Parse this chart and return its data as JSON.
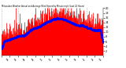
{
  "title": "Milwaukee Weather Actual and Average Wind Speed by Minute mph (Last 24 Hours)",
  "n_points": 1440,
  "ylim": [
    0,
    20
  ],
  "yticks": [
    2,
    4,
    6,
    8,
    10,
    12,
    14,
    16,
    18,
    20
  ],
  "background_color": "#ffffff",
  "bar_color": "#ff0000",
  "avg_color": "#0000ff",
  "avg_linewidth": 0.6,
  "avg_markersize": 1.0,
  "grid_color": "#bbbbbb",
  "seed": 42,
  "base_profile": [
    3,
    4,
    5,
    7,
    9,
    11,
    13,
    12,
    10,
    9,
    8,
    7
  ],
  "noise_scale": 4.0,
  "avg_window": 90
}
